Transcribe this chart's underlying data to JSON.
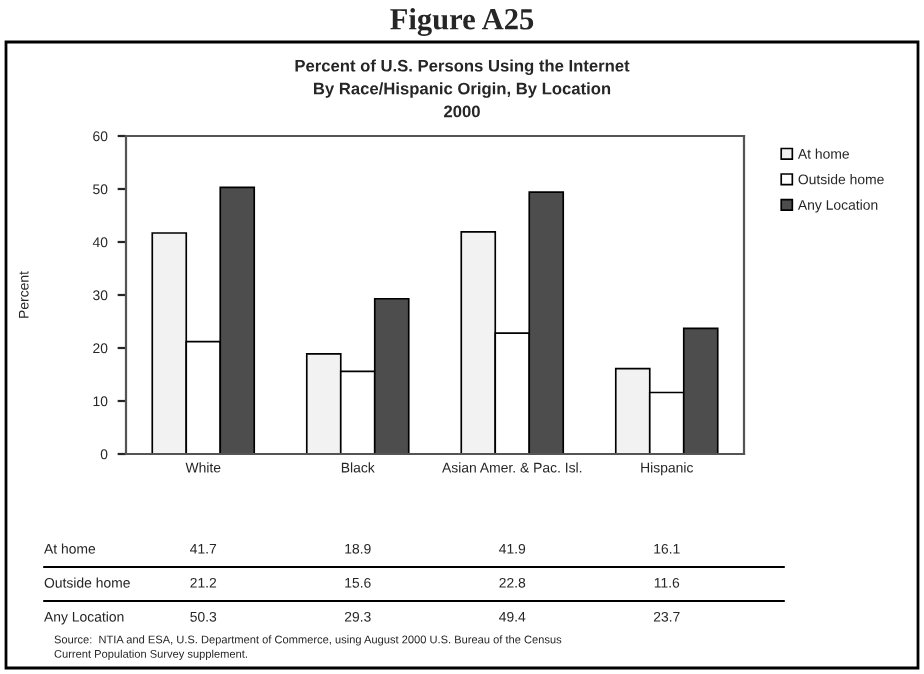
{
  "chart_data": {
    "type": "bar",
    "title": "Figure A25",
    "subtitle": "Percent of U.S. Persons Using the Internet\nBy Race/Hispanic Origin, By Location\n2000",
    "ylabel": "Percent",
    "categories": [
      "White",
      "Black",
      "Asian Amer. & Pac. Isl.",
      "Hispanic"
    ],
    "series": [
      {
        "name": "At home",
        "color": "#f2f2f2",
        "values": [
          41.7,
          18.9,
          41.9,
          16.1
        ]
      },
      {
        "name": "Outside home",
        "color": "#ffffff",
        "values": [
          21.2,
          15.6,
          22.8,
          11.6
        ]
      },
      {
        "name": "Any Location",
        "color": "#4d4d4d",
        "values": [
          50.3,
          29.3,
          49.4,
          23.7
        ]
      }
    ],
    "ylim": [
      0,
      60
    ],
    "yticks": [
      0,
      10,
      20,
      30,
      40,
      50,
      60
    ],
    "grid": false,
    "legend": "right",
    "data_labels": true,
    "annotations": [
      "Source:  NTIA and ESA, U.S. Department of Commerce, using August 2000 U.S. Bureau of the Census\nCurrent Population Survey supplement."
    ]
  }
}
